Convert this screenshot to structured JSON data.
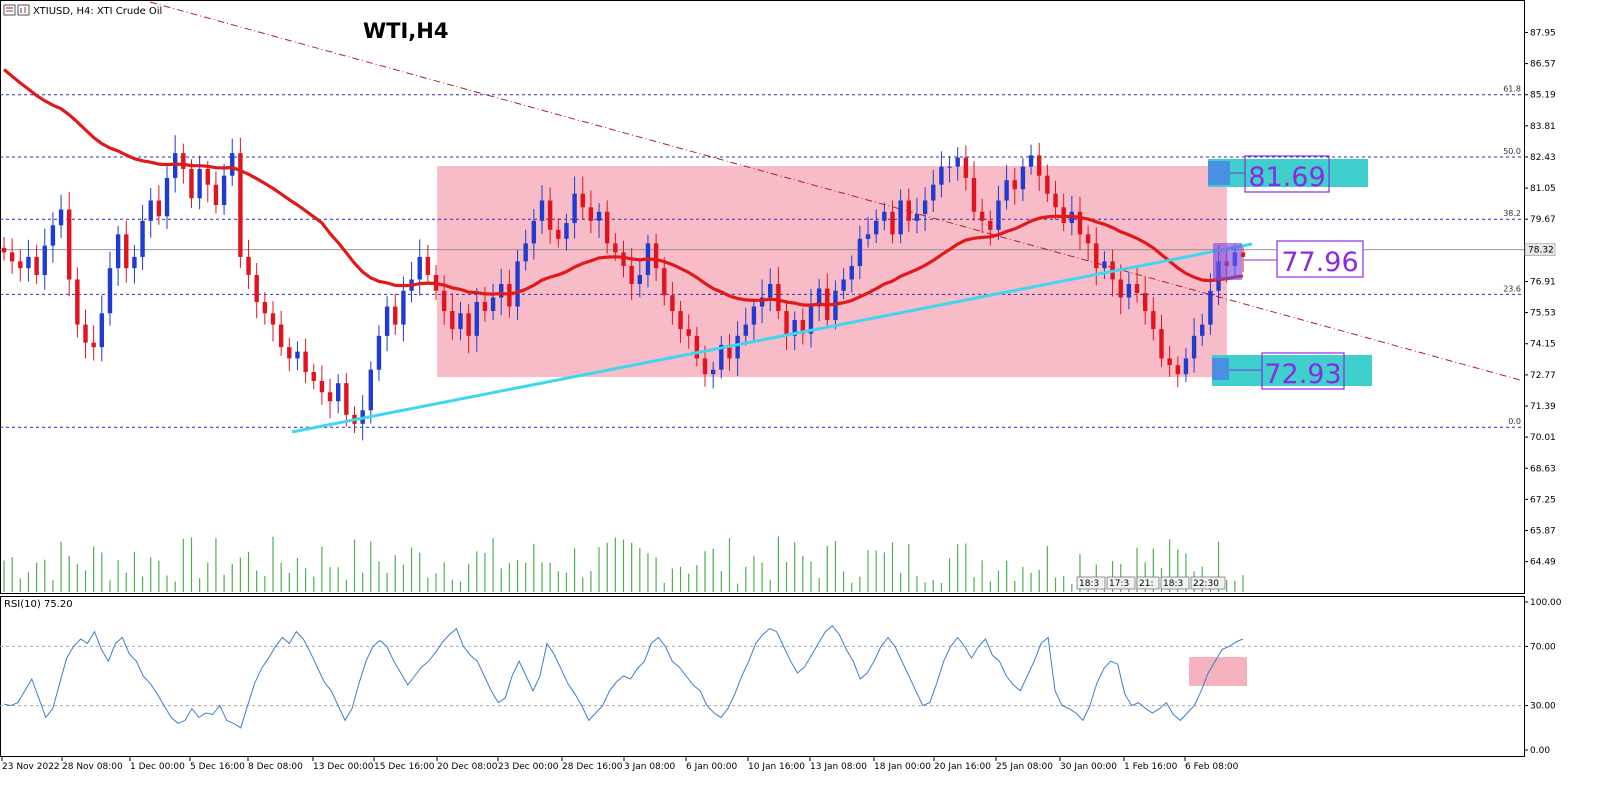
{
  "header": {
    "symbol_line": "XTIUSD, H4:  XTI Crude Oil",
    "overlay_title": "WTI,H4"
  },
  "colors": {
    "bull": "#1f3bd0",
    "bear": "#e0141e",
    "ma": "#e01919",
    "trendline": "#3fd6ee",
    "range_box": "#f4a6b4",
    "level_box": "#3fcfcc",
    "current_box": "#7b4fe0",
    "fib_line": "#2b2bb5",
    "rsi_line": "#3a7fc8",
    "volume": "#4caf50",
    "label_text": "#8a2be2"
  },
  "price_labels": {
    "resistance": "81.69",
    "current": "77.96",
    "support": "72.93",
    "last_price": "78.32"
  },
  "fib_levels": [
    {
      "label": "61.8",
      "price": 85.19
    },
    {
      "label": "50.0",
      "price": 82.43
    },
    {
      "label": "38.2",
      "price": 79.67
    },
    {
      "label": "23.6",
      "price": 76.34
    },
    {
      "label": "0.0",
      "price": 70.45
    }
  ],
  "volume_timestamps": [
    "18:3",
    "17:3",
    "21:",
    "18:3",
    "22:30"
  ],
  "rsi": {
    "label": "RSI(10) 75.20",
    "ticks": [
      "100.00",
      "70.00",
      "30.00",
      "0.00"
    ],
    "values": [
      31,
      30,
      32,
      40,
      48,
      35,
      22,
      28,
      45,
      62,
      70,
      75,
      72,
      80,
      68,
      60,
      72,
      76,
      65,
      60,
      50,
      45,
      38,
      30,
      22,
      18,
      20,
      28,
      22,
      25,
      24,
      30,
      20,
      18,
      15,
      30,
      45,
      55,
      62,
      70,
      76,
      72,
      80,
      75,
      66,
      56,
      46,
      40,
      30,
      20,
      28,
      45,
      60,
      70,
      74,
      70,
      60,
      52,
      44,
      50,
      56,
      60,
      66,
      73,
      78,
      82,
      70,
      64,
      60,
      50,
      40,
      32,
      35,
      50,
      60,
      50,
      40,
      50,
      72,
      65,
      55,
      45,
      38,
      30,
      20,
      25,
      30,
      40,
      46,
      50,
      48,
      55,
      60,
      72,
      76,
      70,
      60,
      56,
      50,
      44,
      40,
      30,
      25,
      22,
      28,
      38,
      50,
      60,
      72,
      78,
      82,
      80,
      70,
      60,
      52,
      56,
      64,
      72,
      80,
      84,
      78,
      68,
      60,
      48,
      52,
      60,
      70,
      76,
      70,
      60,
      50,
      40,
      30,
      32,
      45,
      60,
      70,
      76,
      70,
      62,
      70,
      75,
      64,
      60,
      50,
      44,
      40,
      50,
      60,
      72,
      76,
      40,
      30,
      28,
      25,
      20,
      30,
      45,
      55,
      60,
      58,
      38,
      30,
      32,
      28,
      25,
      28,
      32,
      24,
      20,
      25,
      30,
      40,
      52,
      60,
      68,
      70,
      73,
      75
    ],
    "ylim": [
      0,
      100
    ]
  },
  "chart_data": {
    "type": "candlestick",
    "title": "WTI,H4",
    "symbol": "XTIUSD, H4:  XTI Crude Oil",
    "y_ticks": [
      "87.95",
      "86.57",
      "85.19",
      "83.81",
      "82.43",
      "81.05",
      "79.67",
      "78.29",
      "76.91",
      "75.53",
      "74.15",
      "72.77",
      "71.39",
      "70.01",
      "68.63",
      "67.25",
      "65.87",
      "64.49"
    ],
    "x_ticks": [
      "23 Nov 2022",
      "28 Nov 08:00",
      "1 Dec 00:00",
      "5 Dec 16:00",
      "8 Dec 08:00",
      "13 Dec 00:00",
      "15 Dec 16:00",
      "20 Dec 08:00",
      "23 Dec 00:00",
      "28 Dec 16:00",
      "3 Jan 08:00",
      "6 Jan 00:00",
      "10 Jan 16:00",
      "13 Jan 08:00",
      "18 Jan 00:00",
      "20 Jan 16:00",
      "25 Jan 08:00",
      "30 Jan 00:00",
      "1 Feb 16:00",
      "6 Feb 08:00"
    ],
    "ylim": [
      63.1,
      89.3
    ],
    "close": [
      78.2,
      77.8,
      77.5,
      78.0,
      77.2,
      78.5,
      79.4,
      80.1,
      77.0,
      75.0,
      74.2,
      74.0,
      75.5,
      77.5,
      79.0,
      77.5,
      78.0,
      79.6,
      80.5,
      79.8,
      81.5,
      82.6,
      81.9,
      80.6,
      81.9,
      81.2,
      80.3,
      81.6,
      82.6,
      78.0,
      77.2,
      76.0,
      75.5,
      75.0,
      74.0,
      73.5,
      73.8,
      72.9,
      72.5,
      72.0,
      71.6,
      72.4,
      71.0,
      70.6,
      71.2,
      73.0,
      74.5,
      75.8,
      75.0,
      76.5,
      77.0,
      78.0,
      77.2,
      76.5,
      75.6,
      74.8,
      75.5,
      74.5,
      76.0,
      75.6,
      76.2,
      76.8,
      75.8,
      77.8,
      78.6,
      79.6,
      80.5,
      79.2,
      78.8,
      79.5,
      80.8,
      80.2,
      79.6,
      80.0,
      78.6,
      78.2,
      77.6,
      76.8,
      77.2,
      78.6,
      77.5,
      76.3,
      75.6,
      74.8,
      74.5,
      73.5,
      72.8,
      73.0,
      74.1,
      73.5,
      74.5,
      75.0,
      75.8,
      76.2,
      76.8,
      75.6,
      74.5,
      75.2,
      74.6,
      75.8,
      76.6,
      75.2,
      76.5,
      77.0,
      77.6,
      78.8,
      79.0,
      79.6,
      80.0,
      79.0,
      80.5,
      79.6,
      79.9,
      80.5,
      81.2,
      82.0,
      82.0,
      82.4,
      81.5,
      80.0,
      79.6,
      79.2,
      80.5,
      81.4,
      81.0,
      82.0,
      82.5,
      81.6,
      80.8,
      80.2,
      79.5,
      80.0,
      79.0,
      78.6,
      77.5,
      77.8,
      77.0,
      76.2,
      76.8,
      76.4,
      75.6,
      74.8,
      73.5,
      73.2,
      72.8,
      73.5,
      74.5,
      75.0,
      76.5,
      77.8,
      77.6,
      78.2,
      78.0
    ],
    "ma_period_line": "red moving average",
    "legend": "none"
  }
}
